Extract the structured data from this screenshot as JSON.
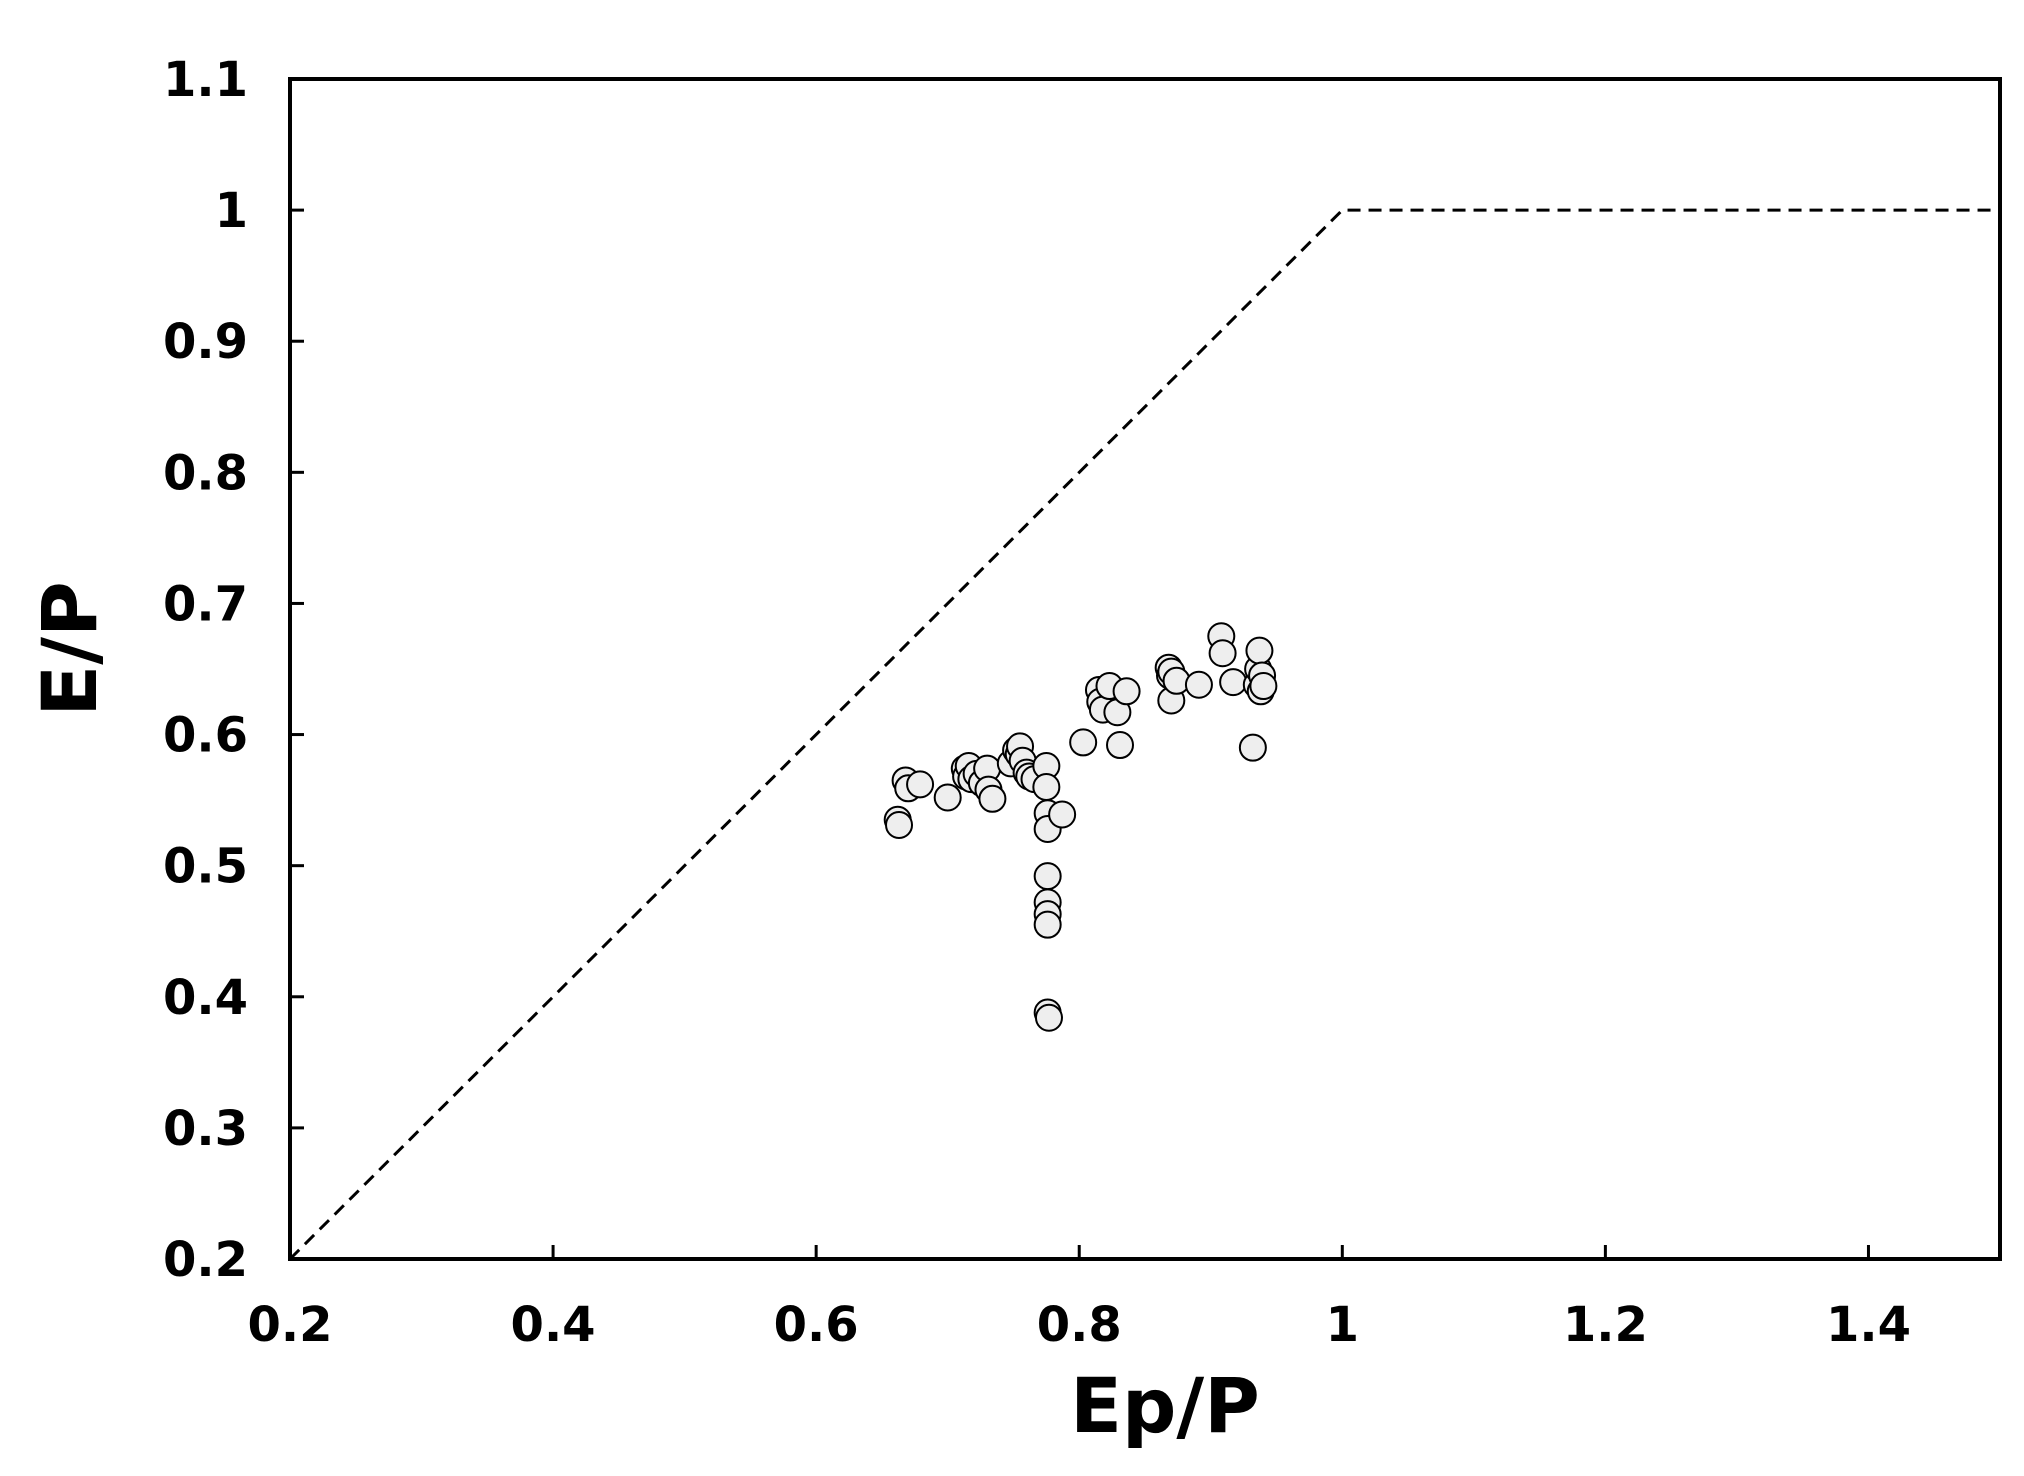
{
  "chart_data": {
    "type": "scatter",
    "title": "",
    "xlabel": "Ep/P",
    "ylabel": "E/P",
    "xlim": [
      0.2,
      1.5
    ],
    "ylim": [
      0.2,
      1.1
    ],
    "xticks": [
      0.2,
      0.4,
      0.6,
      0.8,
      1.0,
      1.2,
      1.4
    ],
    "xtick_labels": [
      "0.2",
      "0.4",
      "0.6",
      "0.8",
      "1",
      "1.2",
      "1.4"
    ],
    "yticks": [
      0.2,
      0.3,
      0.4,
      0.5,
      0.6,
      0.7,
      0.8,
      0.9,
      1.0,
      1.1
    ],
    "ytick_labels": [
      "0.2",
      "0.3",
      "0.4",
      "0.5",
      "0.6",
      "0.7",
      "0.8",
      "0.9",
      "1",
      "1.1"
    ],
    "grid": false,
    "legend": false,
    "reference_line": {
      "style": "dashed",
      "points": [
        [
          0.2,
          0.2
        ],
        [
          1.0,
          1.0
        ],
        [
          1.5,
          1.0
        ]
      ]
    },
    "marker": {
      "shape": "circle",
      "fill": "#eeeeee",
      "edge": "#000000"
    },
    "series": [
      {
        "points": [
          [
            0.662,
            0.535
          ],
          [
            0.663,
            0.531
          ],
          [
            0.668,
            0.565
          ],
          [
            0.67,
            0.559
          ],
          [
            0.679,
            0.562
          ],
          [
            0.7,
            0.552
          ],
          [
            0.713,
            0.574
          ],
          [
            0.714,
            0.568
          ],
          [
            0.716,
            0.576
          ],
          [
            0.718,
            0.566
          ],
          [
            0.722,
            0.57
          ],
          [
            0.726,
            0.563
          ],
          [
            0.73,
            0.574
          ],
          [
            0.731,
            0.558
          ],
          [
            0.734,
            0.551
          ],
          [
            0.748,
            0.578
          ],
          [
            0.752,
            0.588
          ],
          [
            0.754,
            0.585
          ],
          [
            0.755,
            0.591
          ],
          [
            0.757,
            0.58
          ],
          [
            0.76,
            0.571
          ],
          [
            0.762,
            0.568
          ],
          [
            0.766,
            0.566
          ],
          [
            0.775,
            0.576
          ],
          [
            0.775,
            0.56
          ],
          [
            0.776,
            0.54
          ],
          [
            0.776,
            0.528
          ],
          [
            0.776,
            0.492
          ],
          [
            0.776,
            0.472
          ],
          [
            0.776,
            0.463
          ],
          [
            0.776,
            0.455
          ],
          [
            0.776,
            0.388
          ],
          [
            0.777,
            0.384
          ],
          [
            0.787,
            0.539
          ],
          [
            0.803,
            0.594
          ],
          [
            0.815,
            0.634
          ],
          [
            0.816,
            0.625
          ],
          [
            0.818,
            0.619
          ],
          [
            0.823,
            0.637
          ],
          [
            0.829,
            0.617
          ],
          [
            0.831,
            0.592
          ],
          [
            0.836,
            0.633
          ],
          [
            0.868,
            0.651
          ],
          [
            0.869,
            0.645
          ],
          [
            0.87,
            0.648
          ],
          [
            0.87,
            0.626
          ],
          [
            0.874,
            0.641
          ],
          [
            0.891,
            0.638
          ],
          [
            0.908,
            0.675
          ],
          [
            0.909,
            0.662
          ],
          [
            0.917,
            0.64
          ],
          [
            0.932,
            0.59
          ],
          [
            0.935,
            0.638
          ],
          [
            0.936,
            0.65
          ],
          [
            0.937,
            0.664
          ],
          [
            0.938,
            0.633
          ],
          [
            0.939,
            0.645
          ],
          [
            0.94,
            0.637
          ]
        ]
      }
    ]
  }
}
